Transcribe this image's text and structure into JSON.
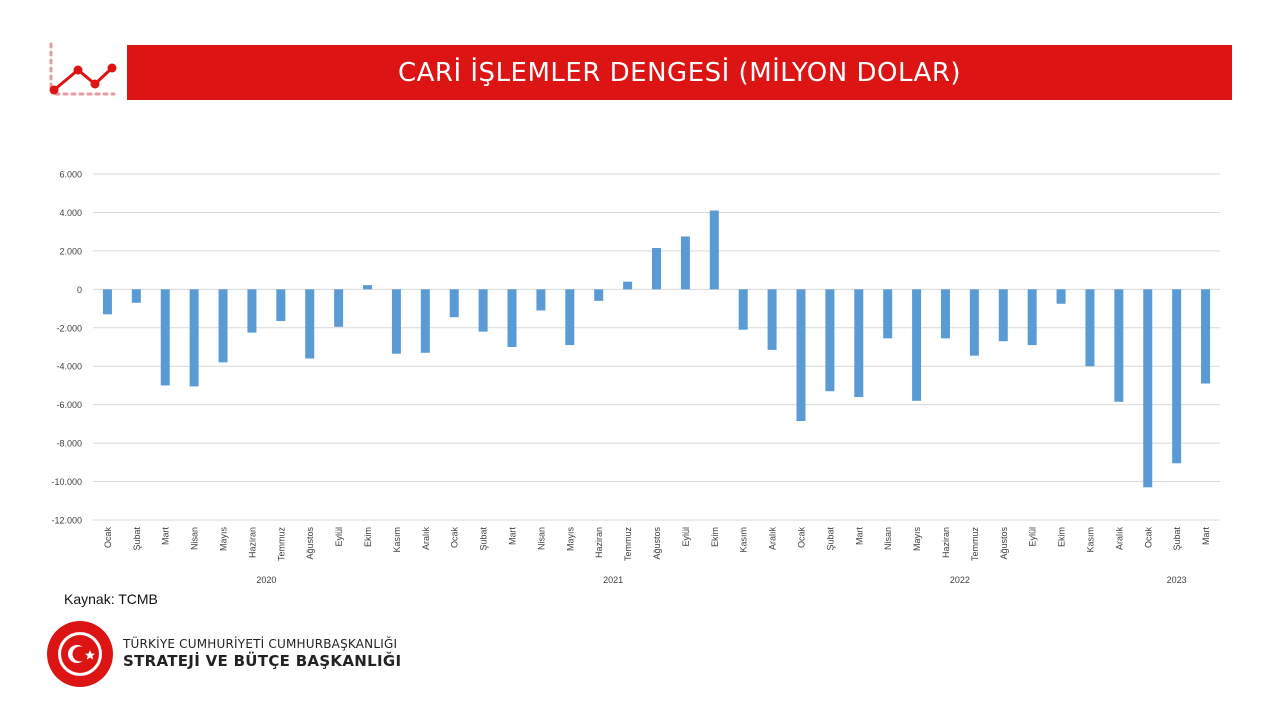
{
  "header": {
    "title": "CARİ İŞLEMLER DENGESİ (MİLYON DOLAR)",
    "icon": "trend-line-icon",
    "accent_color": "#dc1414"
  },
  "chart_data": {
    "type": "bar",
    "title": "CARİ İŞLEMLER DENGESİ (MİLYON DOLAR)",
    "xlabel": "",
    "ylabel": "",
    "ylim": [
      -12000,
      6000
    ],
    "yticks": [
      6000,
      4000,
      2000,
      0,
      -2000,
      -4000,
      -6000,
      -8000,
      -10000,
      -12000
    ],
    "ytick_labels": [
      "6.000",
      "4.000",
      "2.000",
      "0",
      "-2.000",
      "-4.000",
      "-6.000",
      "-8.000",
      "-10.000",
      "-12.000"
    ],
    "grid": true,
    "legend": "none",
    "bar_color": "#5b9bd5",
    "categories": [
      "Ocak",
      "Şubat",
      "Mart",
      "Nisan",
      "Mayıs",
      "Haziran",
      "Temmuz",
      "Ağustos",
      "Eylül",
      "Ekim",
      "Kasım",
      "Aralık",
      "Ocak",
      "Şubat",
      "Mart",
      "Nisan",
      "Mayıs",
      "Haziran",
      "Temmuz",
      "Ağustos",
      "Eylül",
      "Ekim",
      "Kasım",
      "Aralık",
      "Ocak",
      "Şubat",
      "Mart",
      "Nisan",
      "Mayıs",
      "Haziran",
      "Temmuz",
      "Ağustos",
      "Eylül",
      "Ekim",
      "Kasım",
      "Aralık",
      "Ocak",
      "Şubat",
      "Mart"
    ],
    "values": [
      -1300,
      -700,
      -5000,
      -5050,
      -3800,
      -2250,
      -1650,
      -3600,
      -1950,
      220,
      -3350,
      -3300,
      -1450,
      -2200,
      -3000,
      -1100,
      -2900,
      -600,
      400,
      2150,
      2750,
      4100,
      -2100,
      -3150,
      -6850,
      -5300,
      -5600,
      -2550,
      -5800,
      -2550,
      -3450,
      -2700,
      -2900,
      -750,
      -4000,
      -5850,
      -10300,
      -9050,
      -4900
    ],
    "groups": [
      {
        "label": "2020",
        "count": 12
      },
      {
        "label": "2021",
        "count": 12
      },
      {
        "label": "2022",
        "count": 12
      },
      {
        "label": "2023",
        "count": 3
      }
    ]
  },
  "source": {
    "text": "Kaynak: TCMB"
  },
  "footer": {
    "line1": "TÜRKİYE CUMHURİYETİ CUMHURBAŞKANLIĞI",
    "line2": "STRATEJİ VE BÜTÇE BAŞKANLIĞI",
    "seal_icon": "institution-seal-icon"
  }
}
